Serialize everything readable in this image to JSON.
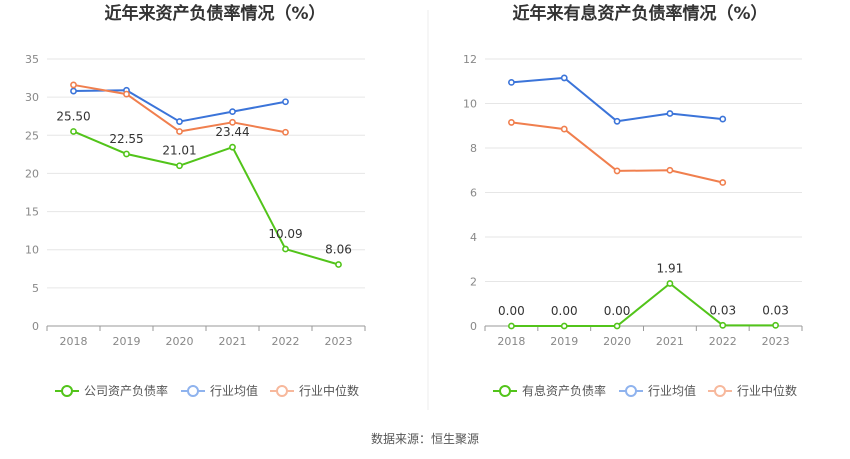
{
  "source_text": "数据来源：恒生聚源",
  "chart_data": [
    {
      "type": "line",
      "title": "近年来资产负债率情况（%）",
      "categories": [
        "2018",
        "2019",
        "2020",
        "2021",
        "2022",
        "2023"
      ],
      "ylim": [
        0,
        35
      ],
      "yticks": [
        "0",
        "5",
        "10",
        "15",
        "20",
        "25",
        "30",
        "35"
      ],
      "grid": true,
      "legend_position": "bottom",
      "series": [
        {
          "name": "公司资产负债率",
          "color": "#52c41a",
          "values": [
            25.5,
            22.55,
            21.01,
            23.44,
            10.09,
            8.06
          ],
          "labels": [
            "25.50",
            "22.55",
            "21.01",
            "23.44",
            "10.09",
            "8.06"
          ]
        },
        {
          "name": "行业均值",
          "color": "#3b74d9",
          "values": [
            30.8,
            30.9,
            26.8,
            28.1,
            29.4,
            null
          ]
        },
        {
          "name": "行业中位数",
          "color": "#f07f4e",
          "values": [
            31.6,
            30.4,
            25.5,
            26.7,
            25.4,
            null
          ]
        }
      ]
    },
    {
      "type": "line",
      "title": "近年来有息资产负债率情况（%）",
      "categories": [
        "2018",
        "2019",
        "2020",
        "2021",
        "2022",
        "2023"
      ],
      "ylim": [
        0,
        12
      ],
      "yticks": [
        "0",
        "2",
        "4",
        "6",
        "8",
        "10",
        "12"
      ],
      "grid": true,
      "legend_position": "bottom",
      "series": [
        {
          "name": "有息资产负债率",
          "color": "#52c41a",
          "values": [
            0.0,
            0.0,
            0.0,
            1.91,
            0.03,
            0.03
          ],
          "labels": [
            "0.00",
            "0.00",
            "0.00",
            "1.91",
            "0.03",
            "0.03"
          ]
        },
        {
          "name": "行业均值",
          "color": "#3b74d9",
          "values": [
            10.95,
            11.15,
            9.2,
            9.55,
            9.3,
            null
          ]
        },
        {
          "name": "行业中位数",
          "color": "#f07f4e",
          "values": [
            9.15,
            8.85,
            6.97,
            7.0,
            6.45,
            null
          ]
        }
      ]
    }
  ]
}
